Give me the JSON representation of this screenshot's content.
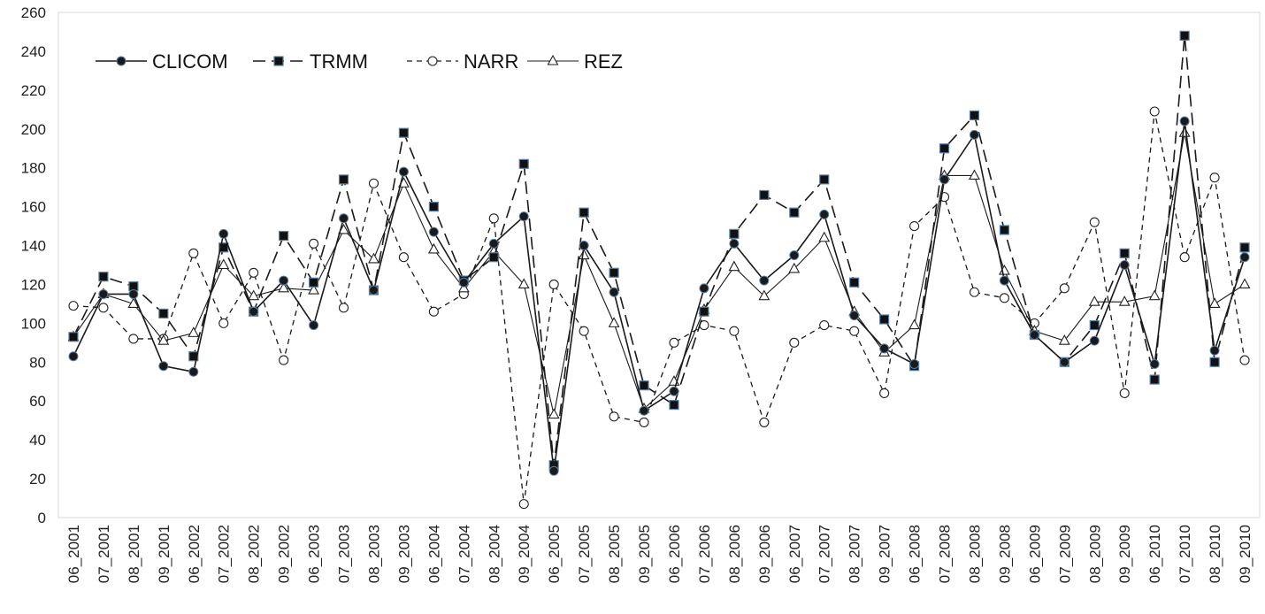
{
  "chart_data": {
    "type": "line",
    "title": "",
    "xlabel": "",
    "ylabel": "",
    "ylim": [
      0,
      260
    ],
    "yticks": [
      0,
      20,
      40,
      60,
      80,
      100,
      120,
      140,
      160,
      180,
      200,
      220,
      240,
      260
    ],
    "grid": false,
    "legend_position": "top-left",
    "categories": [
      "06_2001",
      "07_2001",
      "08_2001",
      "09_2001",
      "06_2002",
      "07_2002",
      "08_2002",
      "09_2002",
      "06_2003",
      "07_2003",
      "08_2003",
      "09_2003",
      "06_2004",
      "07_2004",
      "08_2004",
      "09_2004",
      "06_2005",
      "07_2005",
      "08_2005",
      "09_2005",
      "06_2006",
      "07_2006",
      "08_2006",
      "09_2006",
      "06_2007",
      "07_2007",
      "08_2007",
      "09_2007",
      "06_2008",
      "07_2008",
      "08_2008",
      "09_2008",
      "06_2009",
      "07_2009",
      "08_2009",
      "09_2009",
      "06_2010",
      "07_2010",
      "08_2010",
      "09_2010"
    ],
    "series": [
      {
        "name": "CLICOM",
        "marker": "filled-circle",
        "line": "solid",
        "values": [
          83,
          115,
          115,
          78,
          75,
          146,
          106,
          122,
          99,
          154,
          117,
          178,
          147,
          121,
          141,
          155,
          24,
          140,
          116,
          55,
          65,
          118,
          141,
          122,
          135,
          156,
          104,
          87,
          79,
          174,
          197,
          122,
          94,
          80,
          91,
          130,
          79,
          204,
          86,
          134
        ]
      },
      {
        "name": "TRMM",
        "marker": "filled-square",
        "line": "long-dash",
        "values": [
          93,
          124,
          119,
          105,
          83,
          139,
          106,
          145,
          121,
          174,
          117,
          198,
          160,
          122,
          134,
          182,
          27,
          157,
          126,
          68,
          58,
          106,
          146,
          166,
          157,
          174,
          121,
          102,
          78,
          190,
          207,
          148,
          94,
          80,
          99,
          136,
          71,
          248,
          80,
          139
        ]
      },
      {
        "name": "NARR",
        "marker": "open-circle",
        "line": "short-dash",
        "values": [
          109,
          108,
          92,
          92,
          136,
          100,
          126,
          81,
          141,
          108,
          172,
          134,
          106,
          115,
          154,
          7,
          120,
          96,
          52,
          49,
          90,
          99,
          96,
          49,
          90,
          99,
          96,
          64,
          150,
          165,
          116,
          113,
          100,
          118,
          152,
          64,
          209,
          134,
          175,
          81
        ]
      },
      {
        "name": "REZ",
        "marker": "open-triangle",
        "line": "solid-thin",
        "values": [
          93,
          115,
          110,
          91,
          95,
          130,
          114,
          118,
          117,
          148,
          133,
          172,
          138,
          118,
          137,
          120,
          53,
          135,
          100,
          56,
          70,
          107,
          129,
          114,
          128,
          144,
          106,
          85,
          99,
          176,
          176,
          127,
          96,
          91,
          111,
          111,
          114,
          198,
          110,
          120
        ]
      }
    ]
  }
}
